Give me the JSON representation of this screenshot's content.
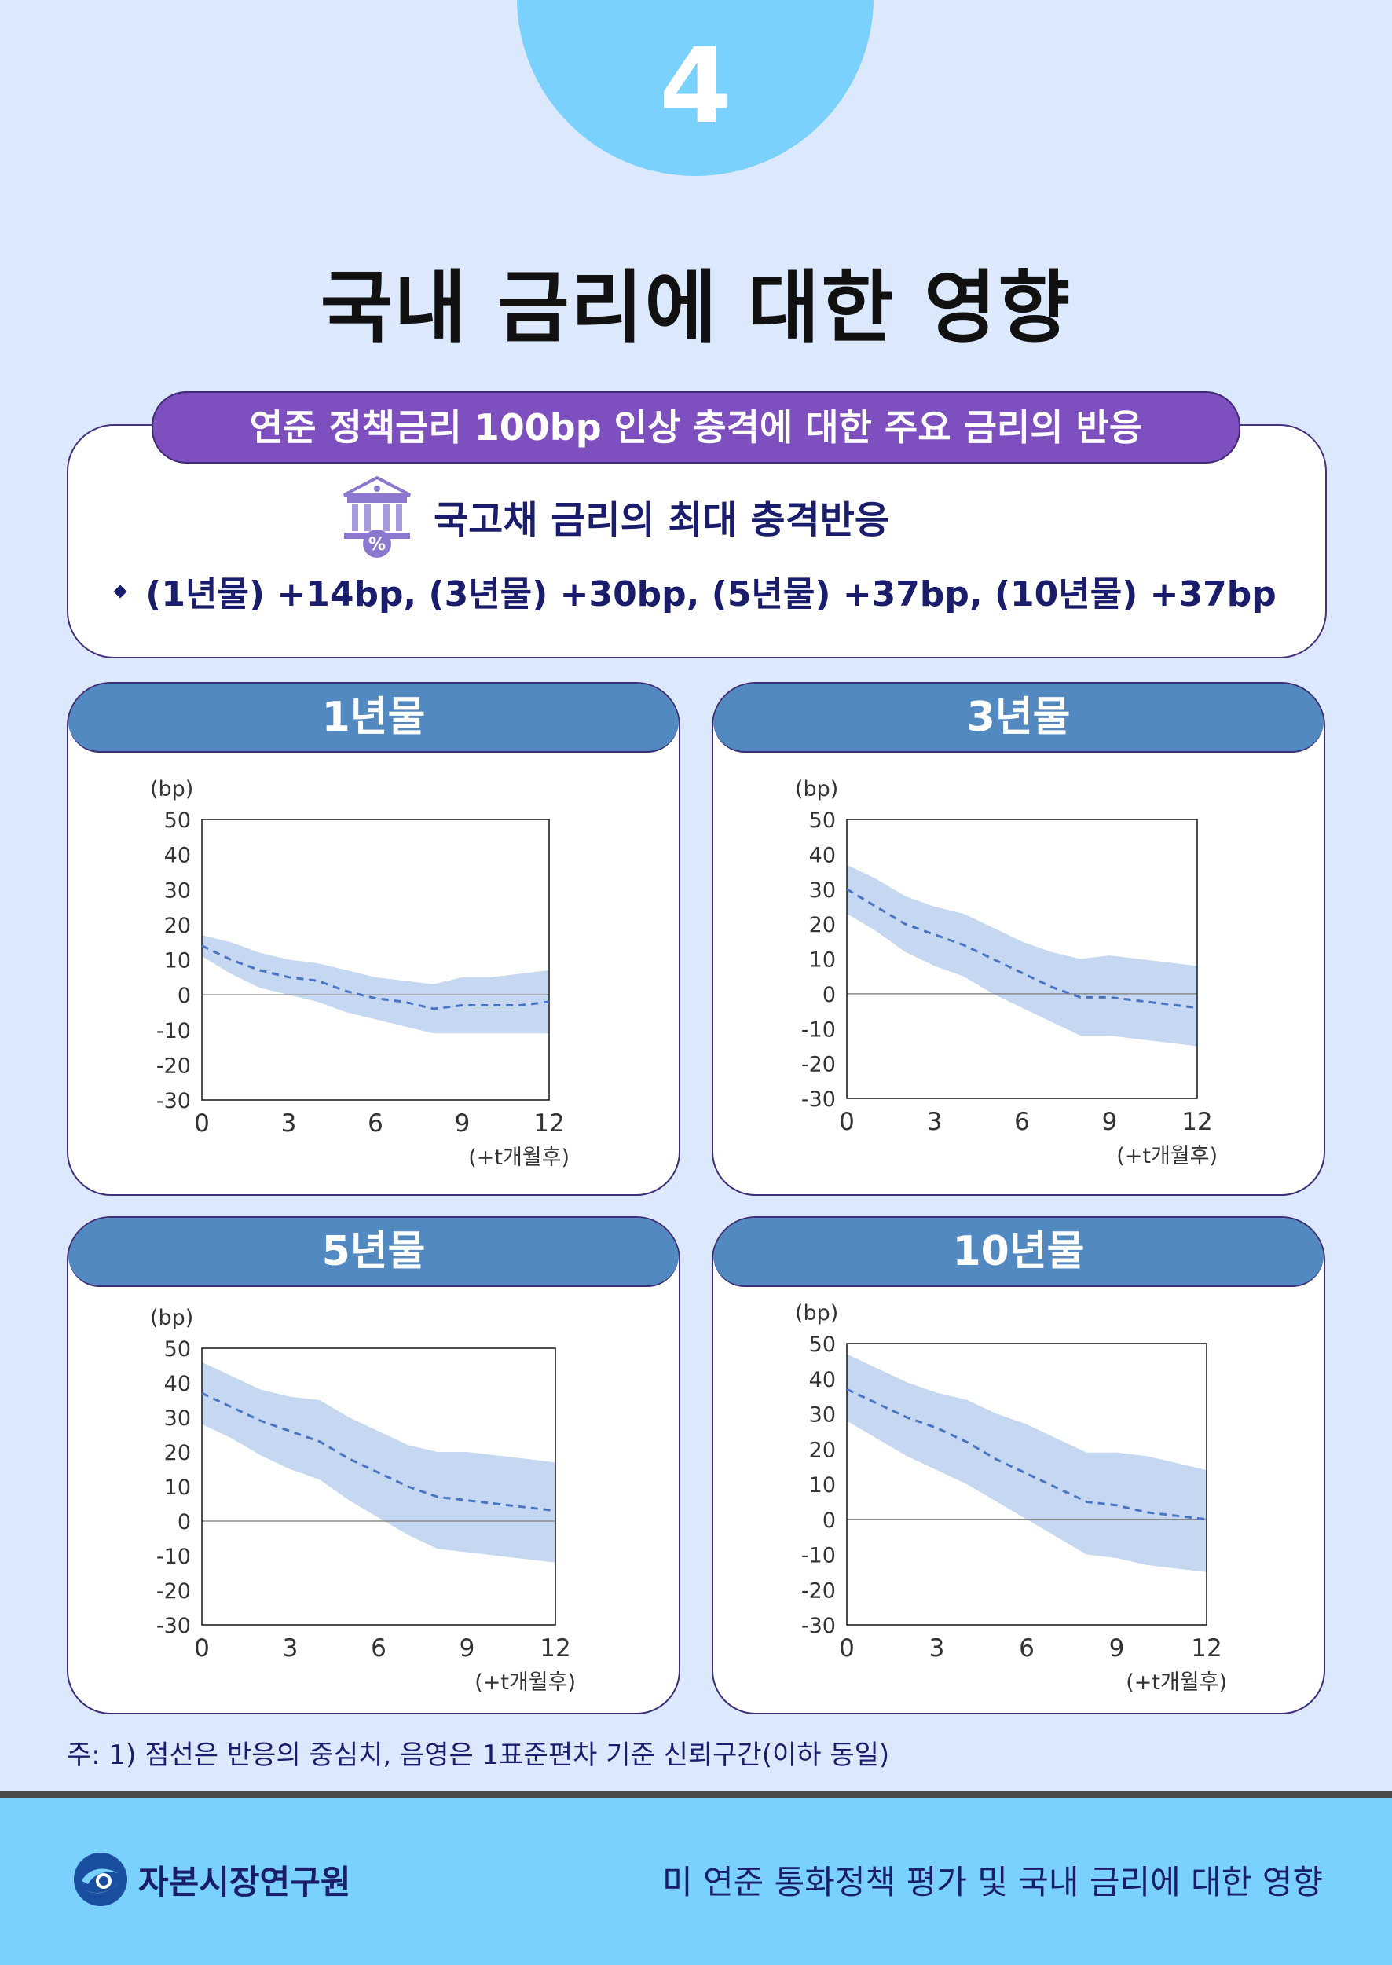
{
  "page_number": "4",
  "title": "국내 금리에 대한 영향",
  "summary": {
    "pill": "연준 정책금리 100bp 인상 충격에 대한 주요 금리의 반응",
    "heading": "국고채 금리의 최대 충격반응",
    "bullet": "(1년물) +14bp, (3년물) +30bp, (5년물) +37bp, (10년물) +37bp",
    "icon": "bank-percent-icon"
  },
  "chart_data": [
    {
      "type": "line",
      "title": "1년물",
      "ylabel": "(bp)",
      "xlabel": "(+t개월후)",
      "ylim": [
        -30,
        50
      ],
      "xlim": [
        0,
        12
      ],
      "yticks": [
        "50",
        "40",
        "30",
        "20",
        "10",
        "0",
        "-10",
        "-20",
        "-30"
      ],
      "xticks": [
        "0",
        "3",
        "6",
        "9",
        "12"
      ],
      "x": [
        0,
        1,
        2,
        3,
        4,
        5,
        6,
        7,
        8,
        9,
        10,
        11,
        12
      ],
      "series": [
        {
          "role": "median",
          "style": "dashed",
          "values": [
            14,
            10,
            7,
            5,
            4,
            1,
            -1,
            -2,
            -4,
            -3,
            -3,
            -3,
            -2
          ]
        },
        {
          "role": "upper",
          "values": [
            17,
            15,
            12,
            10,
            9,
            7,
            5,
            4,
            3,
            5,
            5,
            6,
            7
          ]
        },
        {
          "role": "lower",
          "values": [
            11,
            6,
            2,
            0,
            -2,
            -5,
            -7,
            -9,
            -11,
            -11,
            -11,
            -11,
            -11
          ]
        }
      ]
    },
    {
      "type": "line",
      "title": "3년물",
      "ylabel": "(bp)",
      "xlabel": "(+t개월후)",
      "ylim": [
        -30,
        50
      ],
      "xlim": [
        0,
        12
      ],
      "yticks": [
        "50",
        "40",
        "30",
        "20",
        "10",
        "0",
        "-10",
        "-20",
        "-30"
      ],
      "xticks": [
        "0",
        "3",
        "6",
        "9",
        "12"
      ],
      "x": [
        0,
        1,
        2,
        3,
        4,
        5,
        6,
        7,
        8,
        9,
        10,
        11,
        12
      ],
      "series": [
        {
          "role": "median",
          "style": "dashed",
          "values": [
            30,
            25,
            20,
            17,
            14,
            10,
            6,
            2,
            -1,
            -1,
            -2,
            -3,
            -4
          ]
        },
        {
          "role": "upper",
          "values": [
            37,
            33,
            28,
            25,
            23,
            19,
            15,
            12,
            10,
            11,
            10,
            9,
            8
          ]
        },
        {
          "role": "lower",
          "values": [
            23,
            18,
            12,
            8,
            5,
            0,
            -4,
            -8,
            -12,
            -12,
            -13,
            -14,
            -15
          ]
        }
      ]
    },
    {
      "type": "line",
      "title": "5년물",
      "ylabel": "(bp)",
      "xlabel": "(+t개월후)",
      "ylim": [
        -30,
        50
      ],
      "xlim": [
        0,
        12
      ],
      "yticks": [
        "50",
        "40",
        "30",
        "20",
        "10",
        "0",
        "-10",
        "-20",
        "-30"
      ],
      "xticks": [
        "0",
        "3",
        "6",
        "9",
        "12"
      ],
      "x": [
        0,
        1,
        2,
        3,
        4,
        5,
        6,
        7,
        8,
        9,
        10,
        11,
        12
      ],
      "series": [
        {
          "role": "median",
          "style": "dashed",
          "values": [
            37,
            33,
            29,
            26,
            23,
            18,
            14,
            10,
            7,
            6,
            5,
            4,
            3
          ]
        },
        {
          "role": "upper",
          "values": [
            46,
            42,
            38,
            36,
            35,
            30,
            26,
            22,
            20,
            20,
            19,
            18,
            17
          ]
        },
        {
          "role": "lower",
          "values": [
            28,
            24,
            19,
            15,
            12,
            6,
            1,
            -4,
            -8,
            -9,
            -10,
            -11,
            -12
          ]
        }
      ]
    },
    {
      "type": "line",
      "title": "10년물",
      "ylabel": "(bp)",
      "xlabel": "(+t개월후)",
      "ylim": [
        -30,
        50
      ],
      "xlim": [
        0,
        12
      ],
      "yticks": [
        "50",
        "40",
        "30",
        "20",
        "10",
        "0",
        "-10",
        "-20",
        "-30"
      ],
      "xticks": [
        "0",
        "3",
        "6",
        "9",
        "12"
      ],
      "x": [
        0,
        1,
        2,
        3,
        4,
        5,
        6,
        7,
        8,
        9,
        10,
        11,
        12
      ],
      "series": [
        {
          "role": "median",
          "style": "dashed",
          "values": [
            37,
            33,
            29,
            26,
            22,
            17,
            13,
            9,
            5,
            4,
            2,
            1,
            0
          ]
        },
        {
          "role": "upper",
          "values": [
            47,
            43,
            39,
            36,
            34,
            30,
            27,
            23,
            19,
            19,
            18,
            16,
            14
          ]
        },
        {
          "role": "lower",
          "values": [
            28,
            23,
            18,
            14,
            10,
            5,
            0,
            -5,
            -10,
            -11,
            -13,
            -14,
            -15
          ]
        }
      ]
    }
  ],
  "colors": {
    "band": "#c6d7f1",
    "median": "#4a74c4",
    "header": "#5389c1",
    "pill": "#7d4fbf"
  },
  "footnote": "주: 1) 점선은 반응의 중심치, 음영은 1표준편차 기준 신뢰구간(이하 동일)",
  "footer": {
    "org": "자본시장연구원",
    "doc_title": "미 연준 통화정책 평가 및 국내 금리에 대한 영향",
    "logo_icon": "kcmi-logo-icon"
  }
}
